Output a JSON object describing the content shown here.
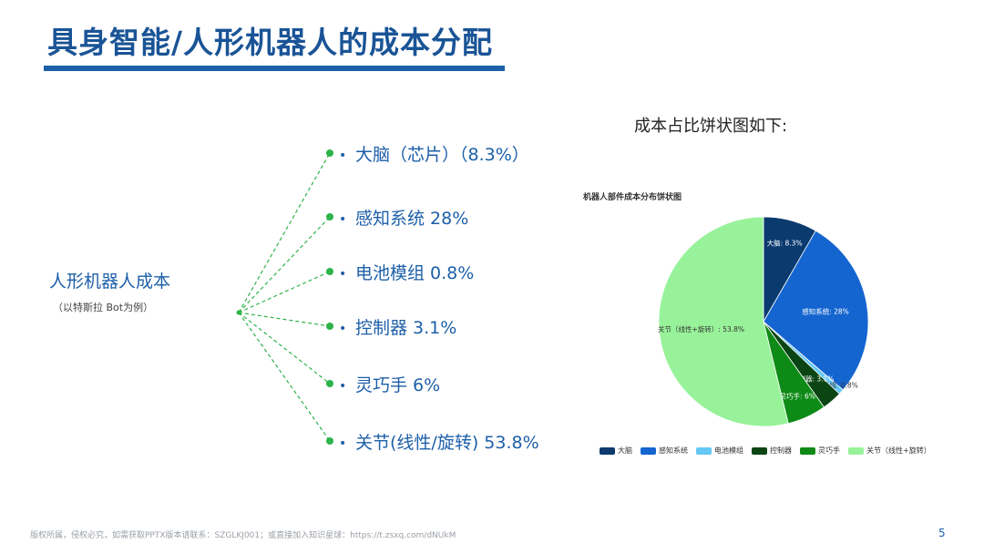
{
  "slide": {
    "title": "具身智能/人形机器人的成本分配",
    "page_number": "5",
    "footer": "版权所属，侵权必究，如需获取PPTX版本请联系：SZGLKJ001；或直接加入知识星球：https://t.zsxq.com/dNUkM"
  },
  "tree": {
    "root_label": "人形机器人成本",
    "root_sub": "（以特斯拉 Bot为例）",
    "bullet": "•",
    "line_color": "#2db34a",
    "branches": [
      {
        "label": "大脑（芯片）（8.3%）"
      },
      {
        "label": "感知系统  28%"
      },
      {
        "label": "电池模组  0.8%"
      },
      {
        "label": "控制器  3.1%"
      },
      {
        "label": "灵巧手  6%"
      },
      {
        "label": "关节(线性/旋转)  53.8%"
      }
    ]
  },
  "chart_heading": "成本占比饼状图如下:",
  "chart_data": {
    "type": "pie",
    "title": "机器人部件成本分布饼状图",
    "legend_position": "bottom",
    "slices": [
      {
        "name": "大脑",
        "value": 8.3,
        "label": "大脑: 8.3%",
        "color": "#0b3a6e"
      },
      {
        "name": "感知系统",
        "value": 28,
        "label": "感知系统: 28%",
        "color": "#1565d0"
      },
      {
        "name": "电池模组",
        "value": 0.8,
        "label": "电池模组: 0.8%",
        "color": "#64c8f5"
      },
      {
        "name": "控制器",
        "value": 3.1,
        "label": "控制器: 3.1%",
        "color": "#0b4514"
      },
      {
        "name": "灵巧手",
        "value": 6,
        "label": "灵巧手: 6%",
        "color": "#0e8a16"
      },
      {
        "name": "关节（线性+旋转）",
        "value": 53.8,
        "label": "关节（线性+旋转）: 53.8%",
        "color": "#98f29a"
      }
    ]
  }
}
